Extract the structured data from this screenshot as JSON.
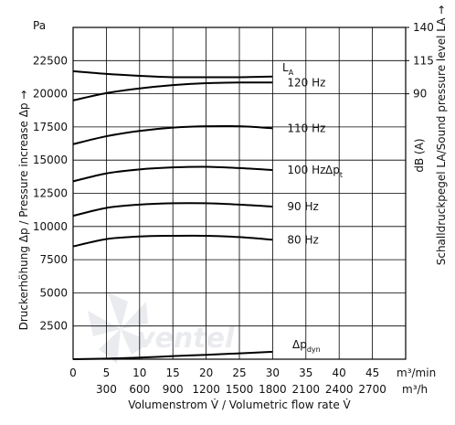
{
  "chart_data": {
    "type": "line",
    "y_unit": "Pa",
    "ylabel": "Druckerhöhung Δp / Pressure increase Δp →",
    "ylim": [
      0,
      25000
    ],
    "y_ticks": [
      2500,
      5000,
      7500,
      10000,
      12500,
      15000,
      17500,
      20000,
      22500
    ],
    "y_tick_labels": [
      "2500",
      "5000",
      "7500",
      "10000",
      "12500",
      "15000",
      "17500",
      "20000",
      "22500"
    ],
    "x_unit": "m³/min",
    "x2_unit": "m³/h",
    "xlabel": "Volumenstrom V̇ / Volumetric flow rate V̇",
    "xlim": [
      0,
      50
    ],
    "x_ticks": [
      0,
      5,
      10,
      15,
      20,
      25,
      30,
      35,
      40,
      45
    ],
    "x_tick_labels": [
      "0",
      "5",
      "10",
      "15",
      "20",
      "25",
      "30",
      "35",
      "40",
      "45"
    ],
    "x2_tick_labels": [
      "300",
      "600",
      "900",
      "1200",
      "1500",
      "1800",
      "2100",
      "2400",
      "2700"
    ],
    "y2_unit": "dB (A)",
    "y2label": "Schalldruckpegel LA/Sound pressure level LA →",
    "y2_ticks": [
      90,
      115,
      140
    ],
    "y2_tick_labels": [
      "90",
      "115",
      "140"
    ],
    "grid": true,
    "series": [
      {
        "name": "120 Hz",
        "label": "120 Hz",
        "x": [
          0,
          5,
          10,
          15,
          20,
          25,
          30
        ],
        "values": [
          19500,
          20050,
          20400,
          20650,
          20800,
          20850,
          20850
        ]
      },
      {
        "name": "110 Hz",
        "label": "110 Hz",
        "x": [
          0,
          5,
          10,
          15,
          20,
          25,
          30
        ],
        "values": [
          16200,
          16800,
          17200,
          17450,
          17550,
          17550,
          17400
        ]
      },
      {
        "name": "100 Hz",
        "label": "100 Hz",
        "x": [
          0,
          5,
          10,
          15,
          20,
          25,
          30
        ],
        "values": [
          13400,
          14000,
          14300,
          14450,
          14500,
          14400,
          14250
        ]
      },
      {
        "name": "90 Hz",
        "label": "90 Hz",
        "x": [
          0,
          5,
          10,
          15,
          20,
          25,
          30
        ],
        "values": [
          10800,
          11400,
          11650,
          11750,
          11750,
          11650,
          11500
        ]
      },
      {
        "name": "80 Hz",
        "label": "80 Hz",
        "x": [
          0,
          5,
          10,
          15,
          20,
          25,
          30
        ],
        "values": [
          8500,
          9050,
          9250,
          9300,
          9300,
          9200,
          9000
        ]
      },
      {
        "name": "LA",
        "label": "LA",
        "x": [
          0,
          5,
          10,
          15,
          20,
          25,
          30
        ],
        "values": [
          21700,
          21500,
          21350,
          21250,
          21250,
          21250,
          21300
        ]
      },
      {
        "name": "Δpdyn",
        "label": "Δpdyn",
        "x": [
          0,
          5,
          10,
          15,
          20,
          25,
          30
        ],
        "values": [
          0,
          40,
          120,
          230,
          330,
          440,
          560
        ]
      }
    ],
    "annotations": {
      "la_main": "L",
      "la_sub": "A",
      "dpt_main": "Δp",
      "dpt_sub": "t",
      "dpdyn_main": "Δp",
      "dpdyn_sub": "dyn"
    },
    "watermark": "ventel"
  }
}
